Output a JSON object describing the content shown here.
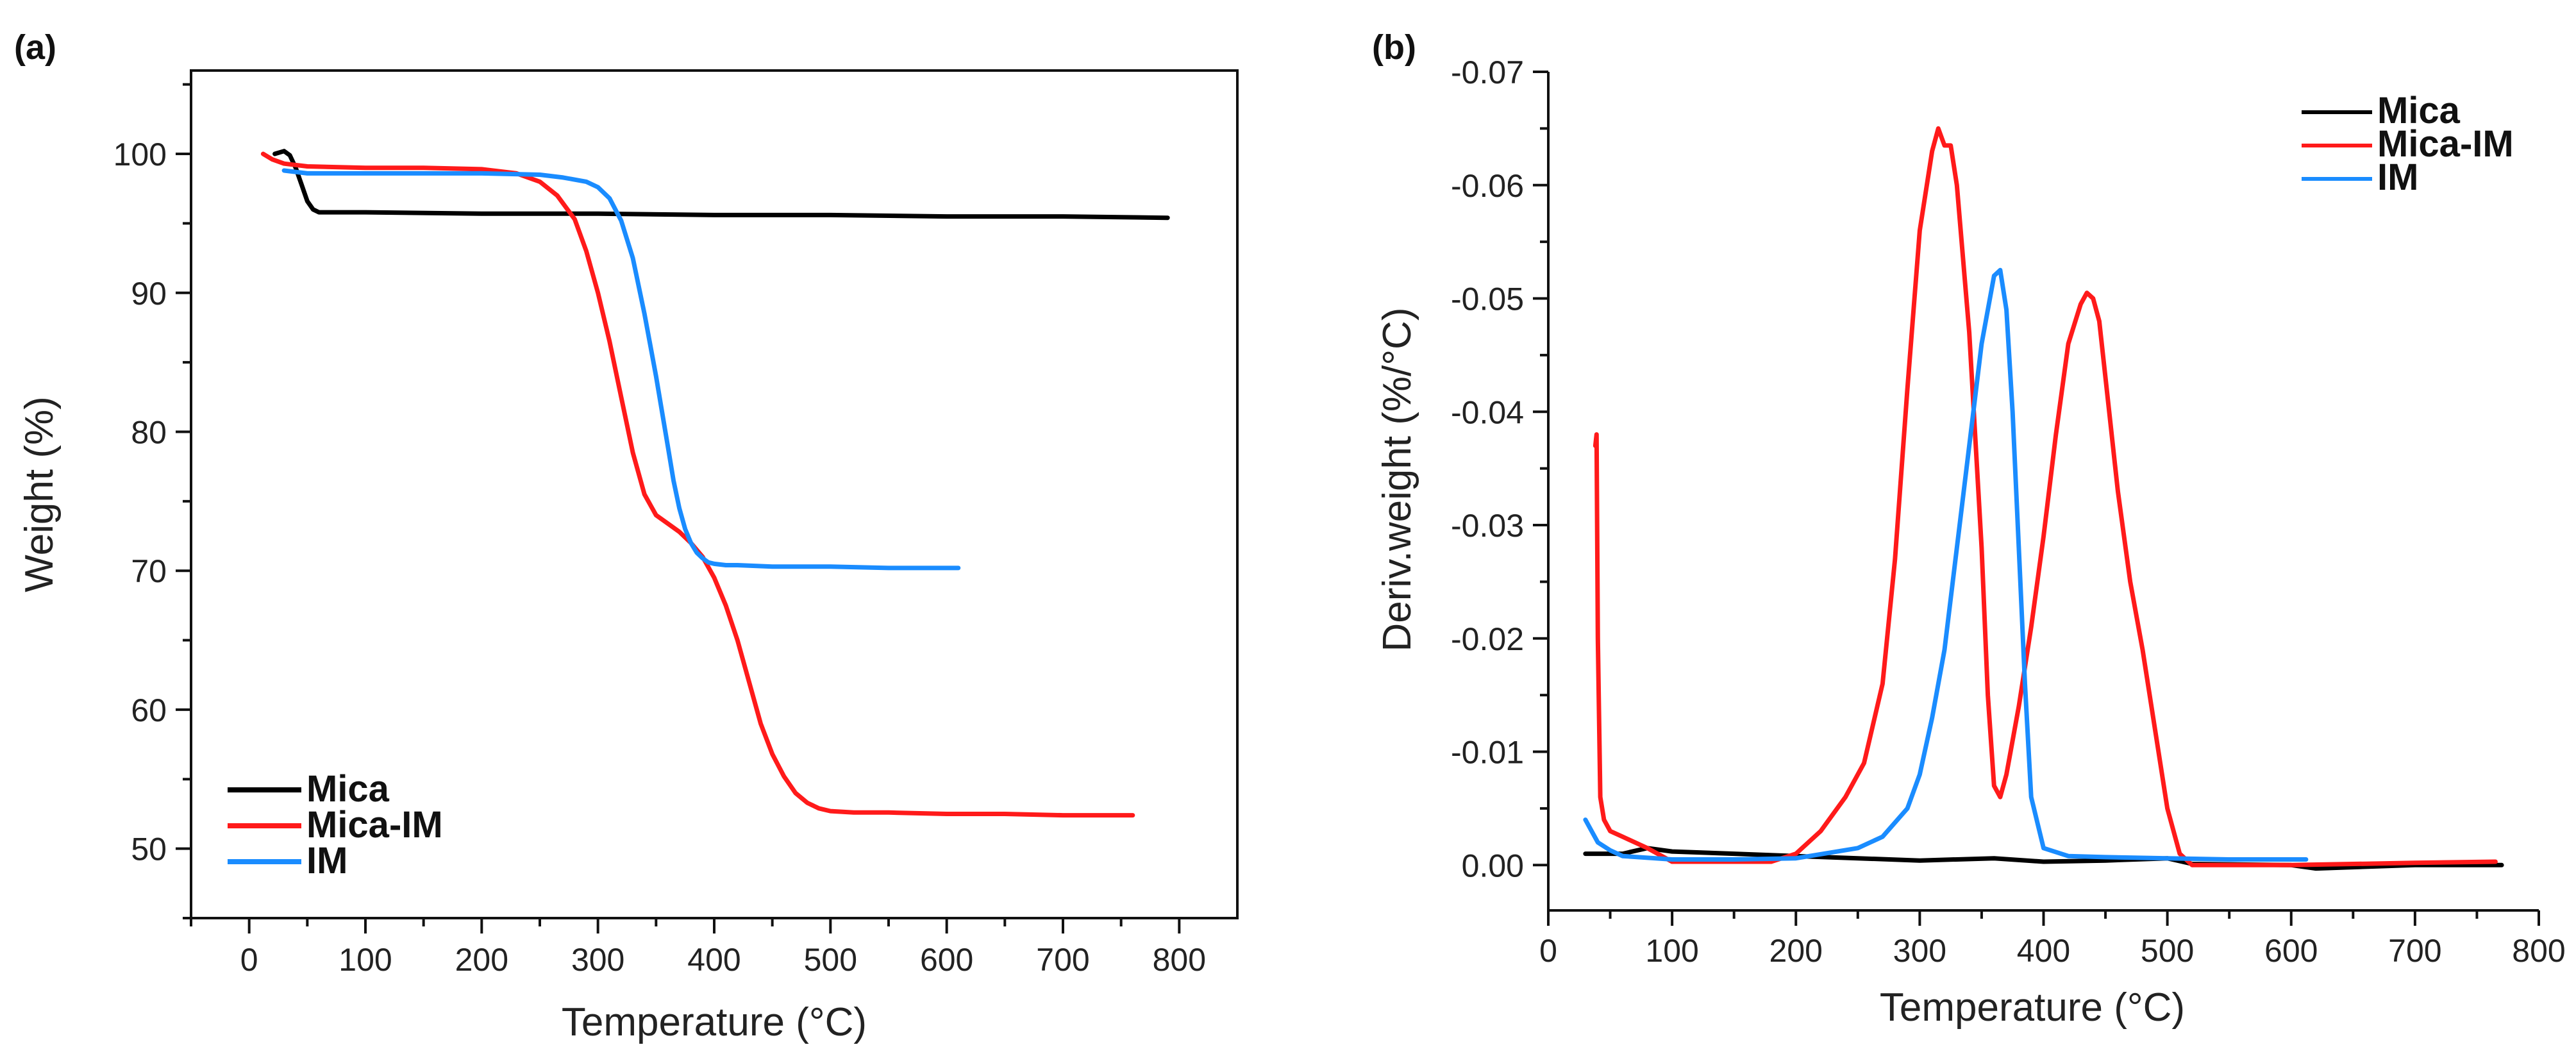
{
  "colors": {
    "Mica": "#000000",
    "Mica-IM": "#ff1a1a",
    "IM": "#1a8cff"
  },
  "chart_data": [
    {
      "panel": "(a)",
      "type": "line",
      "title": "",
      "xlabel": "Temperature (°C)",
      "ylabel": "Weight (%)",
      "xlim": [
        -50,
        850
      ],
      "ylim": [
        45,
        106
      ],
      "xticks": [
        0,
        100,
        200,
        300,
        400,
        500,
        600,
        700,
        800
      ],
      "yticks": [
        50,
        60,
        70,
        80,
        90,
        100
      ],
      "legend_position": "bottom-left",
      "series": [
        {
          "name": "Mica",
          "color": "#000000",
          "x": [
            22,
            30,
            35,
            40,
            45,
            50,
            55,
            60,
            70,
            100,
            200,
            300,
            400,
            500,
            600,
            700,
            790
          ],
          "y": [
            100.0,
            100.2,
            99.9,
            99.0,
            97.8,
            96.6,
            96.0,
            95.8,
            95.8,
            95.8,
            95.7,
            95.7,
            95.6,
            95.6,
            95.5,
            95.5,
            95.4
          ]
        },
        {
          "name": "Mica-IM",
          "color": "#ff1a1a",
          "x": [
            12,
            20,
            30,
            50,
            100,
            150,
            200,
            230,
            250,
            265,
            280,
            290,
            300,
            310,
            320,
            330,
            340,
            350,
            360,
            370,
            380,
            390,
            400,
            410,
            420,
            430,
            440,
            450,
            460,
            470,
            480,
            490,
            500,
            520,
            550,
            600,
            650,
            700,
            760
          ],
          "y": [
            100.0,
            99.6,
            99.3,
            99.1,
            99.0,
            99.0,
            98.9,
            98.6,
            98.0,
            97.0,
            95.3,
            93.0,
            90.0,
            86.5,
            82.5,
            78.5,
            75.5,
            74.0,
            73.4,
            72.8,
            72.0,
            71.0,
            69.5,
            67.5,
            65.0,
            62.0,
            59.0,
            56.8,
            55.2,
            54.0,
            53.3,
            52.9,
            52.7,
            52.6,
            52.6,
            52.5,
            52.5,
            52.4,
            52.4
          ]
        },
        {
          "name": "IM",
          "color": "#1a8cff",
          "x": [
            30,
            50,
            100,
            150,
            200,
            250,
            270,
            290,
            300,
            310,
            320,
            330,
            340,
            350,
            355,
            360,
            365,
            370,
            375,
            380,
            385,
            390,
            395,
            400,
            410,
            420,
            450,
            500,
            550,
            610
          ],
          "y": [
            98.8,
            98.6,
            98.6,
            98.6,
            98.6,
            98.5,
            98.3,
            98.0,
            97.6,
            96.8,
            95.2,
            92.5,
            88.5,
            84.0,
            81.5,
            79.0,
            76.5,
            74.5,
            73.0,
            72.0,
            71.3,
            70.9,
            70.6,
            70.5,
            70.4,
            70.4,
            70.3,
            70.3,
            70.2,
            70.2
          ]
        }
      ]
    },
    {
      "panel": "(b)",
      "type": "line",
      "title": "",
      "xlabel": "Temperature (°C)",
      "ylabel": "Deriv.weight (%/°C)",
      "xlim": [
        0,
        800
      ],
      "ylim": [
        0.004,
        -0.07
      ],
      "ylim_note": "y axis inverted: 0.00 at bottom, -0.07 at top",
      "xticks": [
        0,
        100,
        200,
        300,
        400,
        500,
        600,
        700,
        800
      ],
      "yticks": [
        0.0,
        -0.01,
        -0.02,
        -0.03,
        -0.04,
        -0.05,
        -0.06,
        -0.07
      ],
      "ytick_labels": [
        "0.00",
        "-0.01",
        "-0.02",
        "-0.03",
        "-0.04",
        "-0.05",
        "-0.06",
        "-0.07"
      ],
      "legend_position": "top-right",
      "series": [
        {
          "name": "Mica",
          "color": "#000000",
          "x": [
            30,
            60,
            80,
            100,
            150,
            200,
            300,
            360,
            400,
            450,
            500,
            520,
            600,
            620,
            700,
            770
          ],
          "y": [
            -0.001,
            -0.001,
            -0.0015,
            -0.0012,
            -0.001,
            -0.0008,
            -0.0004,
            -0.0006,
            -0.0003,
            -0.0004,
            -0.0006,
            -0.0001,
            0.0,
            0.0003,
            0.0,
            0.0
          ]
        },
        {
          "name": "Mica-IM",
          "color": "#ff1a1a",
          "x": [
            38,
            39,
            40,
            42,
            45,
            50,
            60,
            80,
            100,
            150,
            180,
            200,
            220,
            240,
            255,
            270,
            280,
            290,
            300,
            310,
            315,
            320,
            325,
            330,
            340,
            350,
            355,
            360,
            365,
            370,
            380,
            390,
            400,
            410,
            420,
            430,
            435,
            440,
            445,
            450,
            460,
            470,
            480,
            490,
            500,
            510,
            520,
            600,
            700,
            765
          ],
          "y": [
            -0.037,
            -0.038,
            -0.02,
            -0.006,
            -0.004,
            -0.003,
            -0.0025,
            -0.0015,
            -0.0003,
            -0.0003,
            -0.0003,
            -0.001,
            -0.003,
            -0.006,
            -0.009,
            -0.016,
            -0.027,
            -0.042,
            -0.056,
            -0.063,
            -0.065,
            -0.0635,
            -0.0635,
            -0.06,
            -0.047,
            -0.028,
            -0.015,
            -0.007,
            -0.006,
            -0.008,
            -0.014,
            -0.021,
            -0.029,
            -0.038,
            -0.046,
            -0.0495,
            -0.0505,
            -0.05,
            -0.048,
            -0.043,
            -0.033,
            -0.025,
            -0.019,
            -0.012,
            -0.005,
            -0.001,
            0.0,
            0.0,
            -0.0002,
            -0.0003
          ]
        },
        {
          "name": "IM",
          "color": "#1a8cff",
          "x": [
            30,
            35,
            40,
            50,
            60,
            100,
            150,
            200,
            250,
            270,
            290,
            300,
            310,
            320,
            330,
            340,
            350,
            360,
            365,
            370,
            375,
            380,
            385,
            390,
            400,
            420,
            450,
            500,
            550,
            612
          ],
          "y": [
            -0.004,
            -0.003,
            -0.002,
            -0.0013,
            -0.0008,
            -0.0005,
            -0.0005,
            -0.0006,
            -0.0015,
            -0.0025,
            -0.005,
            -0.008,
            -0.013,
            -0.019,
            -0.028,
            -0.037,
            -0.046,
            -0.052,
            -0.0525,
            -0.049,
            -0.04,
            -0.028,
            -0.016,
            -0.006,
            -0.0015,
            -0.0008,
            -0.0007,
            -0.0006,
            -0.0005,
            -0.0005
          ]
        }
      ]
    }
  ]
}
